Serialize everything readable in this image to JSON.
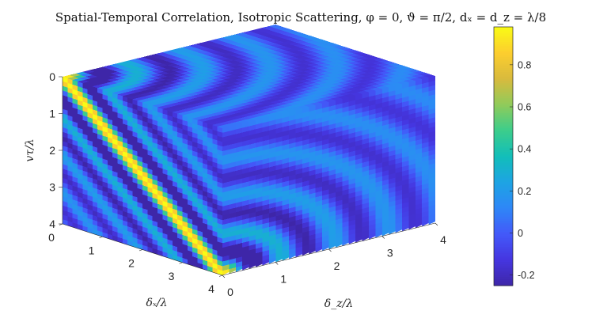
{
  "chart_data": {
    "type": "heatmap",
    "title": "Spatial-Temporal Correlation, Isotropic Scattering, φ = 0, ϑ = π/2, dₓ = d_z = λ/8",
    "axes": {
      "x": {
        "label": "δₓ/λ",
        "ticks": [
          "0",
          "1",
          "2",
          "3",
          "4"
        ],
        "range": [
          0,
          4
        ]
      },
      "z": {
        "label": "δ_z/λ",
        "ticks": [
          "0",
          "1",
          "2",
          "3",
          "4"
        ],
        "range": [
          0,
          4
        ]
      },
      "t": {
        "label": "vτ/λ",
        "ticks": [
          "0",
          "1",
          "2",
          "3",
          "4"
        ],
        "range": [
          0,
          4
        ]
      }
    },
    "grid_step": 0.125,
    "colorbar": {
      "ticks": [
        "0.8",
        "0.6",
        "0.4",
        "0.2",
        "0",
        "-0.2"
      ],
      "tick_values": [
        0.8,
        0.6,
        0.4,
        0.2,
        0,
        -0.2
      ],
      "range": [
        -0.25,
        0.98
      ],
      "colormap": "parula"
    },
    "faces": [
      {
        "name": "front (δz = 0, δx vs vτ)",
        "peak_line": "vτ = δx",
        "peak_value": 0.98,
        "trough_value": -0.25
      },
      {
        "name": "right (δx = 4, δz vs vτ)",
        "pattern": "concentric rings centred at δz = 0, vτ = 4",
        "value_range": [
          -0.25,
          0.3
        ]
      },
      {
        "name": "top (vτ = 0, δx vs δz)",
        "pattern": "concentric rings centred at δx = 0, δz = 0",
        "value_range": [
          -0.25,
          0.75
        ]
      }
    ]
  }
}
